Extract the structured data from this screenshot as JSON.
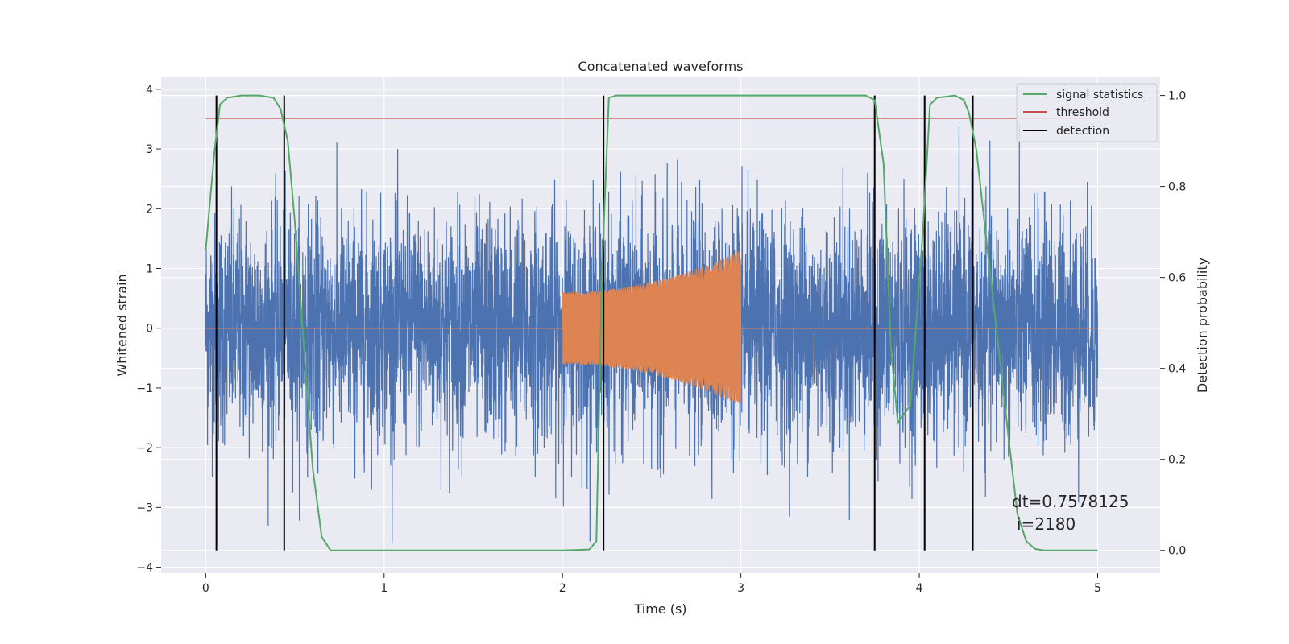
{
  "chart_data": {
    "type": "line",
    "title": "Concatenated waveforms",
    "xlabel": "Time (s)",
    "ylabel": "Whitened strain",
    "y2label": "Detection probability",
    "xlim": [
      -0.25,
      5.35
    ],
    "ylim": [
      -4.1,
      4.2
    ],
    "y2lim": [
      -0.05,
      1.04
    ],
    "xticks": [
      0,
      1,
      2,
      3,
      4,
      5
    ],
    "yticks": [
      -4,
      -3,
      -2,
      -1,
      0,
      1,
      2,
      3,
      4
    ],
    "y2ticks": [
      0.0,
      0.2,
      0.4,
      0.6,
      0.8,
      1.0
    ],
    "xtick_labels": [
      "0",
      "1",
      "2",
      "3",
      "4",
      "5"
    ],
    "ytick_labels": [
      "−4",
      "−3",
      "−2",
      "−1",
      "0",
      "1",
      "2",
      "3",
      "4"
    ],
    "y2tick_labels": [
      "0.0",
      "0.2",
      "0.4",
      "0.6",
      "0.8",
      "1.0"
    ],
    "grid": true,
    "legend_placement": "top-right",
    "legend": [
      {
        "label": "signal statistics",
        "color": "#55a868"
      },
      {
        "label": "threshold",
        "color": "#c44e52"
      },
      {
        "label": "detection",
        "color": "#000000"
      }
    ],
    "noise_series": {
      "color": "#4c72b0",
      "x_range": [
        0,
        5
      ],
      "amplitude_envelope": 3.6
    },
    "injected_signal": {
      "color": "#dd8452",
      "x_range": [
        2.0,
        3.0
      ],
      "amplitude_start": 0.6,
      "amplitude_end": 1.3,
      "baseline_x_range": [
        0,
        5
      ]
    },
    "signal_statistics": {
      "axis": "right",
      "x": [
        0.0,
        0.02,
        0.05,
        0.08,
        0.12,
        0.2,
        0.3,
        0.38,
        0.42,
        0.46,
        0.5,
        0.55,
        0.6,
        0.65,
        0.7,
        1.0,
        1.5,
        2.0,
        2.15,
        2.19,
        2.22,
        2.26,
        2.3,
        2.5,
        3.0,
        3.5,
        3.7,
        3.75,
        3.8,
        3.84,
        3.88,
        3.95,
        4.02,
        4.06,
        4.1,
        4.2,
        4.25,
        4.28,
        4.32,
        4.4,
        4.5,
        4.55,
        4.6,
        4.65,
        4.7,
        5.0
      ],
      "y": [
        0.66,
        0.75,
        0.88,
        0.98,
        0.995,
        1.0,
        1.0,
        0.995,
        0.97,
        0.9,
        0.72,
        0.45,
        0.18,
        0.03,
        0.0,
        0.0,
        0.0,
        0.0,
        0.002,
        0.02,
        0.6,
        0.995,
        1.0,
        1.0,
        1.0,
        1.0,
        1.0,
        0.99,
        0.85,
        0.45,
        0.28,
        0.32,
        0.7,
        0.98,
        0.995,
        1.0,
        0.99,
        0.96,
        0.88,
        0.6,
        0.25,
        0.08,
        0.02,
        0.003,
        0.0,
        0.0
      ]
    },
    "threshold": {
      "axis": "right",
      "value": 0.95,
      "x_range": [
        0,
        5
      ]
    },
    "detections": {
      "axis": "right",
      "x": [
        0.06,
        0.44,
        2.23,
        3.75,
        4.03,
        4.3
      ],
      "y_range": [
        0.0,
        1.0
      ]
    },
    "annotations": [
      "dt=0.7578125",
      "i=2180"
    ]
  }
}
